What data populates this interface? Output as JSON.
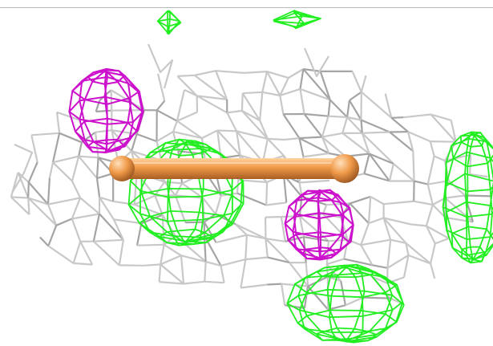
{
  "scene": {
    "colors": {
      "background": "#ffffff",
      "top_rule": "#b8b8b8",
      "density_mesh": "#c8c8c8",
      "density_mesh_dark": "#a4a4a4",
      "positive_difference_mesh": "#22ee22",
      "negative_difference_mesh": "#cc11cc",
      "bond_stick": "#f09a48",
      "bond_stick_shade": "#b8682c"
    },
    "objects": [
      {
        "name": "gray-electron-density-mesh"
      },
      {
        "name": "green-positive-density-blobs"
      },
      {
        "name": "magenta-negative-density-blobs"
      },
      {
        "name": "orange-ball-and-stick-ligand"
      }
    ]
  }
}
